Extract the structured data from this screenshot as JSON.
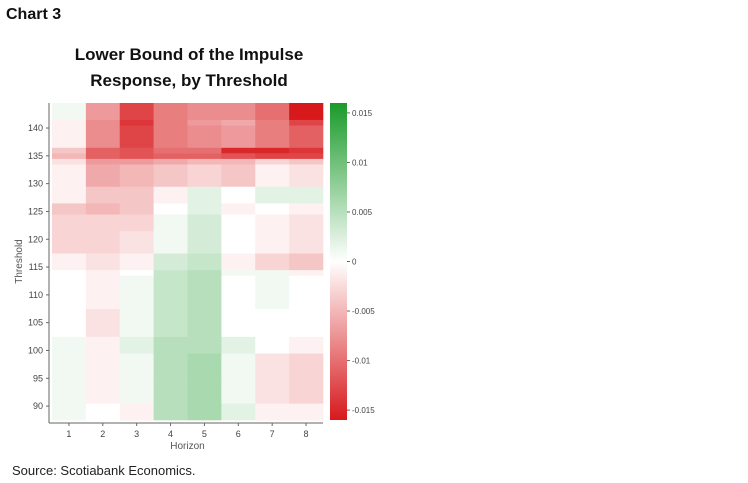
{
  "page": {
    "chart_number_label": "Chart 3",
    "source_note": "Source: Scotiabank Economics."
  },
  "chart_data": {
    "type": "heatmap",
    "title_line1": "Lower Bound of the Impulse",
    "title_line2": "Response, by Threshold",
    "xlabel": "Horizon",
    "ylabel": "Threshold",
    "x": [
      1,
      2,
      3,
      4,
      5,
      6,
      7,
      8
    ],
    "x_tick_labels": [
      "1",
      "2",
      "3",
      "4",
      "5",
      "6",
      "7",
      "8"
    ],
    "y": [
      88,
      89,
      90,
      91,
      92,
      93,
      94,
      95,
      96,
      97,
      98,
      99,
      100,
      101,
      102,
      103,
      104,
      105,
      106,
      107,
      108,
      109,
      110,
      111,
      112,
      113,
      114,
      115,
      116,
      117,
      118,
      119,
      120,
      121,
      122,
      123,
      124,
      125,
      126,
      127,
      128,
      129,
      130,
      131,
      132,
      133,
      134,
      135,
      136,
      137,
      138,
      139,
      140,
      141,
      142,
      143,
      144
    ],
    "y_tick_values": [
      90,
      95,
      100,
      105,
      110,
      115,
      120,
      125,
      130,
      135,
      140
    ],
    "y_tick_labels": [
      "90",
      "95",
      "100",
      "105",
      "110",
      "115",
      "120",
      "125",
      "130",
      "135",
      "140"
    ],
    "zlim": [
      -0.016,
      0.016
    ],
    "colorbar_ticks": [
      0.015,
      0.01,
      0.005,
      0,
      -0.005,
      -0.01,
      -0.015
    ],
    "colorbar_tick_labels": [
      "0.015",
      "0.01",
      "0.005",
      "0",
      "-0.005",
      "-0.01",
      "-0.015"
    ],
    "colors": {
      "low": "#d7191c",
      "mid": "#ffffff",
      "high": "#1a9a2a"
    },
    "bands": [
      {
        "y_from": 88,
        "y_to": 90,
        "values": [
          0.001,
          0.0,
          -0.001,
          0.005,
          0.006,
          0.002,
          -0.001,
          -0.001
        ]
      },
      {
        "y_from": 91,
        "y_to": 94,
        "values": [
          0.001,
          -0.001,
          0.001,
          0.005,
          0.006,
          0.001,
          -0.002,
          -0.003
        ]
      },
      {
        "y_from": 95,
        "y_to": 99,
        "values": [
          0.001,
          -0.001,
          0.001,
          0.005,
          0.006,
          0.001,
          -0.002,
          -0.003
        ]
      },
      {
        "y_from": 100,
        "y_to": 102,
        "values": [
          0.001,
          -0.001,
          0.002,
          0.005,
          0.005,
          0.002,
          0.0,
          -0.001
        ]
      },
      {
        "y_from": 103,
        "y_to": 107,
        "values": [
          0.0,
          -0.002,
          0.001,
          0.004,
          0.005,
          0.0,
          0.0,
          0.0
        ]
      },
      {
        "y_from": 108,
        "y_to": 113,
        "values": [
          0.0,
          -0.001,
          0.001,
          0.004,
          0.005,
          0.0,
          0.001,
          0.0
        ]
      },
      {
        "y_from": 114,
        "y_to": 114,
        "values": [
          0.0,
          -0.001,
          0.0,
          0.004,
          0.005,
          0.001,
          0.001,
          -0.001
        ]
      },
      {
        "y_from": 115,
        "y_to": 117,
        "values": [
          -0.001,
          -0.002,
          -0.001,
          0.003,
          0.004,
          -0.001,
          -0.003,
          -0.004
        ]
      },
      {
        "y_from": 118,
        "y_to": 121,
        "values": [
          -0.003,
          -0.003,
          -0.002,
          0.001,
          0.003,
          0.0,
          -0.001,
          -0.002
        ]
      },
      {
        "y_from": 122,
        "y_to": 124,
        "values": [
          -0.003,
          -0.003,
          -0.003,
          0.001,
          0.003,
          0.0,
          -0.001,
          -0.002
        ]
      },
      {
        "y_from": 125,
        "y_to": 126,
        "values": [
          -0.004,
          -0.005,
          -0.004,
          0.0,
          0.002,
          -0.001,
          0.0,
          -0.001
        ]
      },
      {
        "y_from": 127,
        "y_to": 129,
        "values": [
          -0.001,
          -0.004,
          -0.004,
          -0.001,
          0.002,
          0.0,
          0.002,
          0.002
        ]
      },
      {
        "y_from": 130,
        "y_to": 133,
        "values": [
          -0.001,
          -0.006,
          -0.005,
          -0.004,
          -0.003,
          -0.004,
          -0.001,
          -0.002
        ]
      },
      {
        "y_from": 134,
        "y_to": 134,
        "values": [
          -0.002,
          -0.007,
          -0.007,
          -0.006,
          -0.005,
          -0.005,
          -0.003,
          -0.004
        ]
      },
      {
        "y_from": 135,
        "y_to": 135,
        "values": [
          -0.005,
          -0.011,
          -0.012,
          -0.011,
          -0.011,
          -0.012,
          -0.013,
          -0.013
        ]
      },
      {
        "y_from": 136,
        "y_to": 136,
        "values": [
          -0.004,
          -0.011,
          -0.012,
          -0.01,
          -0.01,
          -0.015,
          -0.015,
          -0.014
        ]
      },
      {
        "y_from": 137,
        "y_to": 140,
        "values": [
          -0.001,
          -0.008,
          -0.013,
          -0.009,
          -0.008,
          -0.007,
          -0.009,
          -0.011
        ]
      },
      {
        "y_from": 141,
        "y_to": 141,
        "values": [
          -0.001,
          -0.008,
          -0.014,
          -0.009,
          -0.007,
          -0.006,
          -0.009,
          -0.013
        ]
      },
      {
        "y_from": 142,
        "y_to": 144,
        "values": [
          0.001,
          -0.007,
          -0.013,
          -0.009,
          -0.008,
          -0.008,
          -0.01,
          -0.016
        ]
      }
    ]
  }
}
